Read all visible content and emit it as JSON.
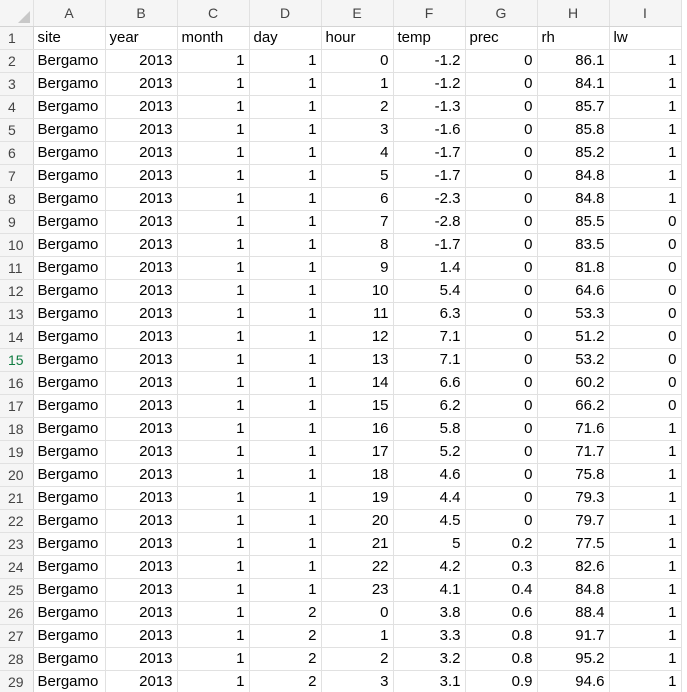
{
  "columns": [
    "A",
    "B",
    "C",
    "D",
    "E",
    "F",
    "G",
    "H",
    "I"
  ],
  "selected_row": 15,
  "headers": [
    "site",
    "year",
    "month",
    "day",
    "hour",
    "temp",
    "prec",
    "rh",
    "lw"
  ],
  "rows": [
    [
      "Bergamo",
      "2013",
      "1",
      "1",
      "0",
      "-1.2",
      "0",
      "86.1",
      "1"
    ],
    [
      "Bergamo",
      "2013",
      "1",
      "1",
      "1",
      "-1.2",
      "0",
      "84.1",
      "1"
    ],
    [
      "Bergamo",
      "2013",
      "1",
      "1",
      "2",
      "-1.3",
      "0",
      "85.7",
      "1"
    ],
    [
      "Bergamo",
      "2013",
      "1",
      "1",
      "3",
      "-1.6",
      "0",
      "85.8",
      "1"
    ],
    [
      "Bergamo",
      "2013",
      "1",
      "1",
      "4",
      "-1.7",
      "0",
      "85.2",
      "1"
    ],
    [
      "Bergamo",
      "2013",
      "1",
      "1",
      "5",
      "-1.7",
      "0",
      "84.8",
      "1"
    ],
    [
      "Bergamo",
      "2013",
      "1",
      "1",
      "6",
      "-2.3",
      "0",
      "84.8",
      "1"
    ],
    [
      "Bergamo",
      "2013",
      "1",
      "1",
      "7",
      "-2.8",
      "0",
      "85.5",
      "0"
    ],
    [
      "Bergamo",
      "2013",
      "1",
      "1",
      "8",
      "-1.7",
      "0",
      "83.5",
      "0"
    ],
    [
      "Bergamo",
      "2013",
      "1",
      "1",
      "9",
      "1.4",
      "0",
      "81.8",
      "0"
    ],
    [
      "Bergamo",
      "2013",
      "1",
      "1",
      "10",
      "5.4",
      "0",
      "64.6",
      "0"
    ],
    [
      "Bergamo",
      "2013",
      "1",
      "1",
      "11",
      "6.3",
      "0",
      "53.3",
      "0"
    ],
    [
      "Bergamo",
      "2013",
      "1",
      "1",
      "12",
      "7.1",
      "0",
      "51.2",
      "0"
    ],
    [
      "Bergamo",
      "2013",
      "1",
      "1",
      "13",
      "7.1",
      "0",
      "53.2",
      "0"
    ],
    [
      "Bergamo",
      "2013",
      "1",
      "1",
      "14",
      "6.6",
      "0",
      "60.2",
      "0"
    ],
    [
      "Bergamo",
      "2013",
      "1",
      "1",
      "15",
      "6.2",
      "0",
      "66.2",
      "0"
    ],
    [
      "Bergamo",
      "2013",
      "1",
      "1",
      "16",
      "5.8",
      "0",
      "71.6",
      "1"
    ],
    [
      "Bergamo",
      "2013",
      "1",
      "1",
      "17",
      "5.2",
      "0",
      "71.7",
      "1"
    ],
    [
      "Bergamo",
      "2013",
      "1",
      "1",
      "18",
      "4.6",
      "0",
      "75.8",
      "1"
    ],
    [
      "Bergamo",
      "2013",
      "1",
      "1",
      "19",
      "4.4",
      "0",
      "79.3",
      "1"
    ],
    [
      "Bergamo",
      "2013",
      "1",
      "1",
      "20",
      "4.5",
      "0",
      "79.7",
      "1"
    ],
    [
      "Bergamo",
      "2013",
      "1",
      "1",
      "21",
      "5",
      "0.2",
      "77.5",
      "1"
    ],
    [
      "Bergamo",
      "2013",
      "1",
      "1",
      "22",
      "4.2",
      "0.3",
      "82.6",
      "1"
    ],
    [
      "Bergamo",
      "2013",
      "1",
      "1",
      "23",
      "4.1",
      "0.4",
      "84.8",
      "1"
    ],
    [
      "Bergamo",
      "2013",
      "1",
      "2",
      "0",
      "3.8",
      "0.6",
      "88.4",
      "1"
    ],
    [
      "Bergamo",
      "2013",
      "1",
      "2",
      "1",
      "3.3",
      "0.8",
      "91.7",
      "1"
    ],
    [
      "Bergamo",
      "2013",
      "1",
      "2",
      "2",
      "3.2",
      "0.8",
      "95.2",
      "1"
    ],
    [
      "Bergamo",
      "2013",
      "1",
      "2",
      "3",
      "3.1",
      "0.9",
      "94.6",
      "1"
    ]
  ]
}
